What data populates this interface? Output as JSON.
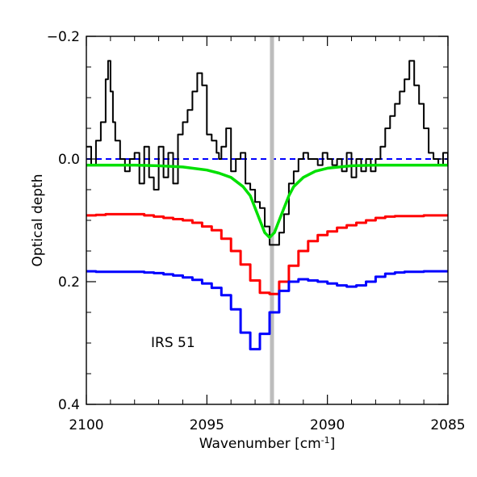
{
  "chart_data": {
    "type": "line",
    "title": "",
    "xlabel": "Wavenumber [cm",
    "xlabel_sup": "-1",
    "xlabel_end": "]",
    "ylabel": "Optical depth",
    "xlim": [
      2100,
      2085
    ],
    "ylim": [
      0.4,
      -0.2
    ],
    "y_inverted": true,
    "x_ticks": [
      2100,
      2095,
      2090,
      2085
    ],
    "x_tick_labels": [
      "2100",
      "2095",
      "2090",
      "2085"
    ],
    "y_ticks": [
      -0.2,
      0.0,
      0.2,
      0.4
    ],
    "y_tick_labels": [
      "−0.2",
      "0.0",
      "0.2",
      "0.4"
    ],
    "annotation": "IRS 51",
    "vertical_line": {
      "x": 2092.3,
      "color": "#bdbdbd"
    },
    "zero_line": {
      "y": 0.0,
      "color": "#0000ff",
      "style": "dashed"
    },
    "series": [
      {
        "color": "#000000",
        "style": "step",
        "x": [
          2100.0,
          2099.8,
          2099.6,
          2099.4,
          2099.2,
          2099.1,
          2099.0,
          2098.9,
          2098.8,
          2098.6,
          2098.4,
          2098.2,
          2098.0,
          2097.8,
          2097.6,
          2097.4,
          2097.2,
          2097.0,
          2096.8,
          2096.6,
          2096.4,
          2096.2,
          2096.0,
          2095.8,
          2095.6,
          2095.4,
          2095.2,
          2095.0,
          2094.8,
          2094.6,
          2094.5,
          2094.4,
          2094.2,
          2094.0,
          2093.8,
          2093.6,
          2093.4,
          2093.2,
          2093.0,
          2092.8,
          2092.6,
          2092.4,
          2092.2,
          2092.0,
          2091.8,
          2091.6,
          2091.4,
          2091.2,
          2091.0,
          2090.8,
          2090.6,
          2090.4,
          2090.2,
          2090.0,
          2089.8,
          2089.6,
          2089.4,
          2089.2,
          2089.0,
          2088.8,
          2088.6,
          2088.4,
          2088.2,
          2088.0,
          2087.8,
          2087.6,
          2087.4,
          2087.2,
          2087.0,
          2086.8,
          2086.6,
          2086.4,
          2086.2,
          2086.0,
          2085.8,
          2085.6,
          2085.4,
          2085.2,
          2085.0
        ],
        "y": [
          -0.02,
          0.01,
          -0.03,
          -0.06,
          -0.13,
          -0.16,
          -0.11,
          -0.06,
          -0.03,
          0.0,
          0.02,
          0.0,
          -0.01,
          0.04,
          -0.02,
          0.03,
          0.05,
          -0.02,
          0.03,
          -0.01,
          0.04,
          -0.04,
          -0.06,
          -0.08,
          -0.11,
          -0.14,
          -0.12,
          -0.04,
          -0.03,
          -0.01,
          0.0,
          -0.02,
          -0.05,
          0.02,
          0.0,
          -0.01,
          0.04,
          0.05,
          0.07,
          0.08,
          0.11,
          0.14,
          0.14,
          0.12,
          0.09,
          0.04,
          0.02,
          0.0,
          -0.01,
          0.0,
          0.0,
          0.01,
          -0.01,
          0.0,
          0.01,
          0.0,
          0.02,
          -0.01,
          0.03,
          0.0,
          0.02,
          0.0,
          0.02,
          0.0,
          -0.02,
          -0.05,
          -0.07,
          -0.09,
          -0.11,
          -0.13,
          -0.16,
          -0.12,
          -0.09,
          -0.05,
          -0.01,
          0.0,
          0.01,
          -0.01,
          0.01
        ]
      },
      {
        "color": "#00e000",
        "style": "smooth",
        "x": [
          2100.0,
          2098.0,
          2097.0,
          2096.0,
          2095.0,
          2094.5,
          2094.0,
          2093.5,
          2093.2,
          2093.0,
          2092.8,
          2092.6,
          2092.4,
          2092.2,
          2092.0,
          2091.8,
          2091.6,
          2091.4,
          2091.0,
          2090.5,
          2090.0,
          2089.0,
          2088.0,
          2087.0,
          2086.0,
          2085.0
        ],
        "y": [
          0.01,
          0.01,
          0.011,
          0.013,
          0.018,
          0.023,
          0.03,
          0.045,
          0.06,
          0.08,
          0.1,
          0.12,
          0.128,
          0.12,
          0.1,
          0.08,
          0.06,
          0.045,
          0.03,
          0.02,
          0.015,
          0.011,
          0.01,
          0.01,
          0.01,
          0.01
        ]
      },
      {
        "color": "#ff0000",
        "style": "step",
        "x": [
          2100.0,
          2099.6,
          2099.2,
          2098.8,
          2098.4,
          2098.0,
          2097.6,
          2097.2,
          2096.8,
          2096.4,
          2096.0,
          2095.6,
          2095.2,
          2094.8,
          2094.4,
          2094.0,
          2093.6,
          2093.2,
          2092.8,
          2092.4,
          2092.0,
          2091.6,
          2091.2,
          2090.8,
          2090.4,
          2090.0,
          2089.6,
          2089.2,
          2088.8,
          2088.4,
          2088.0,
          2087.6,
          2087.2,
          2086.8,
          2086.4,
          2086.0,
          2085.6,
          2085.2
        ],
        "y": [
          0.092,
          0.091,
          0.09,
          0.09,
          0.09,
          0.09,
          0.092,
          0.094,
          0.096,
          0.098,
          0.1,
          0.104,
          0.11,
          0.116,
          0.13,
          0.15,
          0.172,
          0.198,
          0.218,
          0.22,
          0.2,
          0.174,
          0.15,
          0.134,
          0.124,
          0.118,
          0.112,
          0.108,
          0.104,
          0.1,
          0.096,
          0.094,
          0.093,
          0.093,
          0.093,
          0.092,
          0.092,
          0.092
        ]
      },
      {
        "color": "#0000ff",
        "style": "step",
        "x": [
          2100.0,
          2099.6,
          2099.2,
          2098.8,
          2098.4,
          2098.0,
          2097.6,
          2097.2,
          2096.8,
          2096.4,
          2096.0,
          2095.6,
          2095.2,
          2094.8,
          2094.4,
          2094.0,
          2093.6,
          2093.2,
          2092.8,
          2092.4,
          2092.0,
          2091.6,
          2091.2,
          2090.8,
          2090.4,
          2090.0,
          2089.6,
          2089.2,
          2088.8,
          2088.4,
          2088.0,
          2087.6,
          2087.2,
          2086.8,
          2086.4,
          2086.0,
          2085.6,
          2085.2
        ],
        "y": [
          0.183,
          0.184,
          0.184,
          0.184,
          0.184,
          0.184,
          0.185,
          0.186,
          0.188,
          0.19,
          0.193,
          0.197,
          0.203,
          0.21,
          0.222,
          0.245,
          0.283,
          0.31,
          0.285,
          0.25,
          0.215,
          0.2,
          0.196,
          0.198,
          0.2,
          0.203,
          0.206,
          0.208,
          0.206,
          0.2,
          0.192,
          0.187,
          0.185,
          0.184,
          0.184,
          0.183,
          0.183,
          0.183
        ]
      }
    ]
  }
}
